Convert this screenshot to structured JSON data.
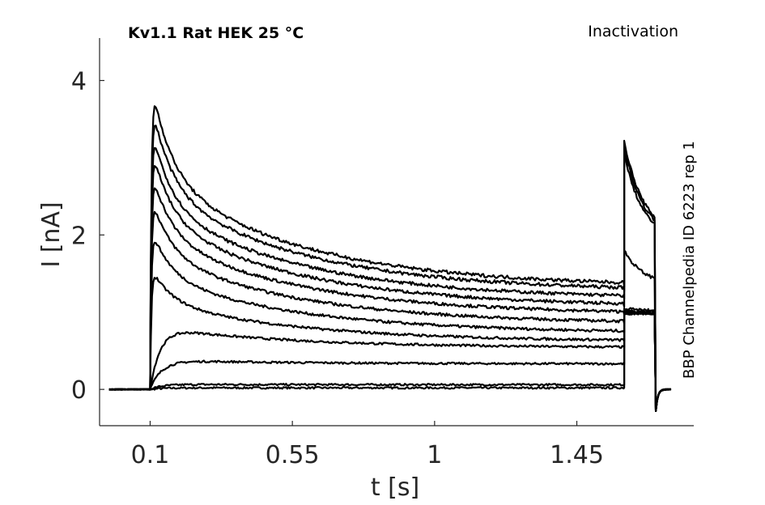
{
  "chart_data": {
    "type": "line",
    "title": "Kv1.1  Rat  HEK  25 °C",
    "protocol_label": "Inactivation",
    "side_label": "BBP Channelpedia ID 6223 rep 1",
    "xlabel": "t [s]",
    "ylabel": "I [nA]",
    "xlim": [
      -0.06,
      1.82
    ],
    "ylim": [
      -0.47,
      4.55
    ],
    "xticks": [
      0.1,
      0.55,
      1,
      1.45
    ],
    "xtick_labels": [
      "0.1",
      "0.55",
      "1",
      "1.45"
    ],
    "yticks": [
      0,
      2,
      4
    ],
    "ytick_labels": [
      "0",
      "2",
      "4"
    ],
    "grid": false,
    "pulse1": {
      "start": 0.1,
      "end": 1.6
    },
    "pulse2": {
      "start": 1.6,
      "end": 1.7
    },
    "series": [
      {
        "peak": 0.02,
        "end": 0.02,
        "p2": 0.98
      },
      {
        "peak": 0.07,
        "end": 0.06,
        "p2": 0.98
      },
      {
        "peak": 0.42,
        "end": 0.33,
        "p2": 0.98
      },
      {
        "peak": 1.02,
        "end": 0.54,
        "p2": 0.99
      },
      {
        "peak": 1.6,
        "end": 0.62,
        "p2": 1.0
      },
      {
        "peak": 2.12,
        "end": 0.73,
        "p2": 1.01
      },
      {
        "peak": 2.55,
        "end": 0.85,
        "p2": 1.03
      },
      {
        "peak": 2.9,
        "end": 0.97,
        "p2": 1.05
      },
      {
        "peak": 3.22,
        "end": 1.07,
        "p2": 1.8
      },
      {
        "peak": 3.48,
        "end": 1.17,
        "p2": 3.05
      },
      {
        "peak": 3.8,
        "end": 1.27,
        "p2": 3.15
      },
      {
        "peak": 4.08,
        "end": 1.33,
        "p2": 3.22
      }
    ]
  }
}
